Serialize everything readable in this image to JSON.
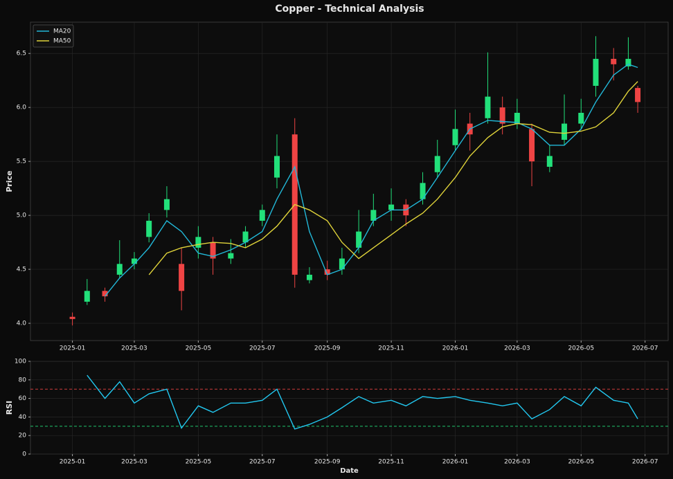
{
  "chart_data": [
    {
      "type": "candlestick",
      "title": "Copper - Technical Analysis",
      "ylabel": "Price",
      "x": [
        "2025-01-01",
        "2025-01-15",
        "2025-02-01",
        "2025-02-15",
        "2025-03-01",
        "2025-03-15",
        "2025-04-01",
        "2025-04-15",
        "2025-05-01",
        "2025-05-15",
        "2025-06-01",
        "2025-06-15",
        "2025-07-01",
        "2025-07-15",
        "2025-08-01",
        "2025-08-15",
        "2025-09-01",
        "2025-09-15",
        "2025-10-01",
        "2025-10-15",
        "2025-11-01",
        "2025-11-15",
        "2025-12-01",
        "2025-12-15",
        "2026-01-01",
        "2026-01-15",
        "2026-02-01",
        "2026-02-15",
        "2026-03-01",
        "2026-03-15",
        "2026-04-01",
        "2026-04-15",
        "2026-05-01",
        "2026-05-15",
        "2026-06-01",
        "2026-06-15",
        "2026-06-24"
      ],
      "open": [
        4.06,
        4.2,
        4.3,
        4.45,
        4.55,
        4.8,
        5.05,
        4.55,
        4.7,
        4.75,
        4.6,
        4.75,
        4.95,
        5.35,
        5.75,
        4.4,
        4.5,
        4.5,
        4.7,
        4.95,
        5.05,
        5.1,
        5.15,
        5.4,
        5.65,
        5.85,
        5.9,
        6.0,
        5.85,
        5.8,
        5.45,
        5.7,
        5.85,
        6.2,
        6.45,
        6.38,
        6.18
      ],
      "high": [
        4.1,
        4.41,
        4.33,
        4.77,
        4.66,
        5.02,
        5.27,
        4.7,
        4.9,
        4.8,
        4.78,
        4.9,
        5.1,
        5.75,
        5.9,
        4.52,
        4.58,
        4.7,
        5.05,
        5.2,
        5.25,
        5.15,
        5.4,
        5.7,
        5.98,
        5.95,
        6.51,
        6.1,
        6.08,
        5.85,
        5.65,
        6.12,
        6.08,
        6.66,
        6.55,
        6.65,
        6.2
      ],
      "low": [
        3.98,
        4.17,
        4.2,
        4.42,
        4.5,
        4.75,
        4.98,
        4.12,
        4.6,
        4.45,
        4.55,
        4.7,
        4.9,
        5.25,
        4.33,
        4.37,
        4.4,
        4.45,
        4.65,
        4.9,
        4.95,
        4.9,
        5.1,
        5.35,
        5.6,
        5.6,
        5.85,
        5.75,
        5.8,
        5.27,
        5.4,
        5.65,
        5.8,
        6.1,
        6.25,
        6.35,
        5.95
      ],
      "close": [
        4.04,
        4.3,
        4.25,
        4.55,
        4.6,
        4.95,
        5.15,
        4.3,
        4.8,
        4.6,
        4.65,
        4.85,
        5.05,
        5.55,
        4.45,
        4.45,
        4.45,
        4.6,
        4.85,
        5.05,
        5.1,
        5.0,
        5.3,
        5.55,
        5.8,
        5.75,
        6.1,
        5.85,
        5.95,
        5.5,
        5.55,
        5.85,
        5.95,
        6.45,
        6.4,
        6.45,
        6.05
      ],
      "up_color": "#22e07a",
      "down_color": "#ef4444",
      "series": [
        {
          "name": "MA20",
          "color": "#22b8d8",
          "values": [
            null,
            null,
            4.25,
            4.42,
            4.55,
            4.7,
            4.95,
            4.85,
            4.65,
            4.62,
            4.68,
            4.75,
            4.85,
            5.15,
            5.45,
            4.85,
            4.45,
            4.5,
            4.7,
            4.95,
            5.05,
            5.05,
            5.15,
            5.35,
            5.6,
            5.8,
            5.88,
            5.87,
            5.86,
            5.8,
            5.65,
            5.65,
            5.8,
            6.05,
            6.3,
            6.4,
            6.37
          ]
        },
        {
          "name": "MA50",
          "color": "#e0d43a",
          "values": [
            null,
            null,
            null,
            null,
            null,
            4.45,
            4.65,
            4.7,
            4.73,
            4.75,
            4.74,
            4.7,
            4.78,
            4.9,
            5.1,
            5.05,
            4.95,
            4.75,
            4.6,
            4.7,
            4.82,
            4.92,
            5.02,
            5.15,
            5.35,
            5.55,
            5.72,
            5.82,
            5.85,
            5.84,
            5.77,
            5.76,
            5.78,
            5.82,
            5.95,
            6.15,
            6.24
          ]
        }
      ],
      "xlim": [
        "2024-11-22",
        "2026-07-23"
      ],
      "xticks": [
        {
          "value": "2025-01-01",
          "label": "2025-01"
        },
        {
          "value": "2025-03-01",
          "label": "2025-03"
        },
        {
          "value": "2025-05-01",
          "label": "2025-05"
        },
        {
          "value": "2025-07-01",
          "label": "2025-07"
        },
        {
          "value": "2025-09-01",
          "label": "2025-09"
        },
        {
          "value": "2025-11-01",
          "label": "2025-11"
        },
        {
          "value": "2026-01-01",
          "label": "2026-01"
        },
        {
          "value": "2026-03-01",
          "label": "2026-03"
        },
        {
          "value": "2026-05-01",
          "label": "2026-05"
        },
        {
          "value": "2026-07-01",
          "label": "2026-07"
        }
      ],
      "ylim": [
        3.84,
        6.79
      ],
      "yticks": [
        {
          "value": 4,
          "label": "4.0"
        },
        4.5,
        {
          "value": 5,
          "label": "5.0"
        },
        5.5,
        {
          "value": 6,
          "label": "6.0"
        },
        6.5
      ],
      "grid": true,
      "legend": "upper left"
    },
    {
      "type": "line",
      "ylabel": "RSI",
      "xlabel": "Date",
      "x": [
        "2025-01-01",
        "2025-01-15",
        "2025-02-01",
        "2025-02-15",
        "2025-03-01",
        "2025-03-15",
        "2025-04-01",
        "2025-04-15",
        "2025-05-01",
        "2025-05-15",
        "2025-06-01",
        "2025-06-15",
        "2025-07-01",
        "2025-07-15",
        "2025-08-01",
        "2025-08-15",
        "2025-09-01",
        "2025-09-15",
        "2025-10-01",
        "2025-10-15",
        "2025-11-01",
        "2025-11-15",
        "2025-12-01",
        "2025-12-15",
        "2026-01-01",
        "2026-01-15",
        "2026-02-01",
        "2026-02-15",
        "2026-03-01",
        "2026-03-15",
        "2026-04-01",
        "2026-04-15",
        "2026-05-01",
        "2026-05-15",
        "2026-06-01",
        "2026-06-15",
        "2026-06-24"
      ],
      "series": [
        {
          "color": "#22c8f0",
          "values": [
            null,
            85,
            60,
            78,
            55,
            65,
            70,
            28,
            52,
            45,
            55,
            55,
            58,
            70,
            27,
            32,
            40,
            50,
            62,
            55,
            58,
            52,
            62,
            60,
            62,
            58,
            55,
            52,
            55,
            38,
            48,
            62,
            52,
            72,
            58,
            55,
            38
          ]
        }
      ],
      "reference_lines": [
        {
          "value": 70,
          "color": "#ef4444"
        },
        {
          "value": 30,
          "color": "#22e07a"
        }
      ],
      "xlim": [
        "2024-11-22",
        "2026-07-23"
      ],
      "xticks": [
        {
          "value": "2025-01-01",
          "label": "2025-01"
        },
        {
          "value": "2025-03-01",
          "label": "2025-03"
        },
        {
          "value": "2025-05-01",
          "label": "2025-05"
        },
        {
          "value": "2025-07-01",
          "label": "2025-07"
        },
        {
          "value": "2025-09-01",
          "label": "2025-09"
        },
        {
          "value": "2025-11-01",
          "label": "2025-11"
        },
        {
          "value": "2026-01-01",
          "label": "2026-01"
        },
        {
          "value": "2026-03-01",
          "label": "2026-03"
        },
        {
          "value": "2026-05-01",
          "label": "2026-05"
        },
        {
          "value": "2026-07-01",
          "label": "2026-07"
        }
      ],
      "ylim": [
        0,
        100
      ],
      "yticks": [
        0,
        20,
        40,
        60,
        80,
        100
      ],
      "grid": true
    }
  ]
}
